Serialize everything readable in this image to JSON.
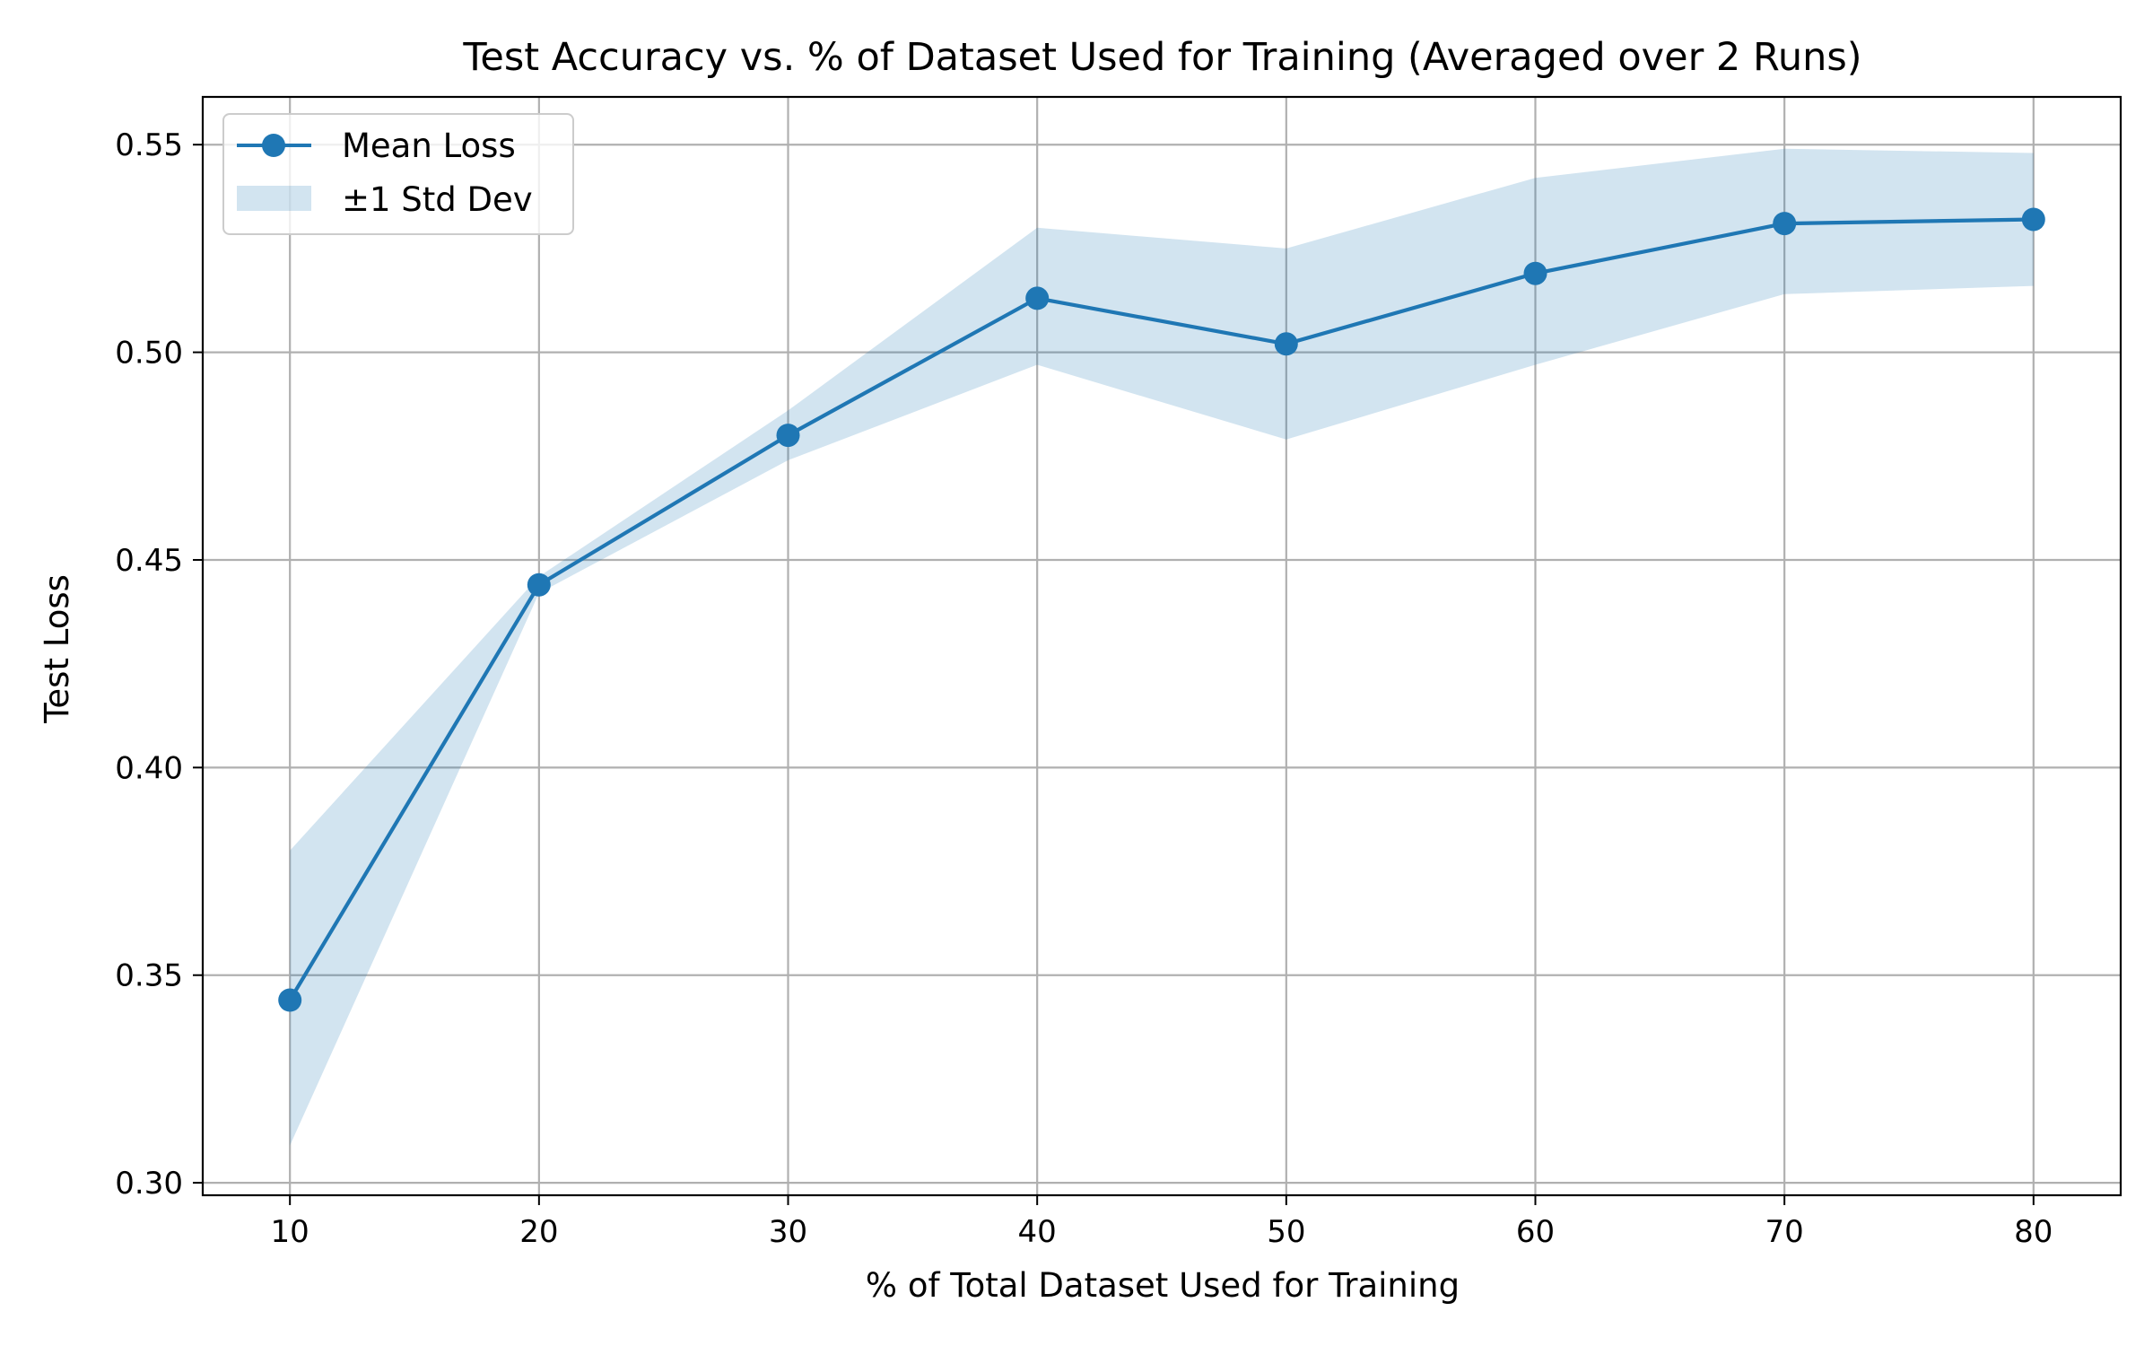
{
  "chart_data": {
    "type": "line",
    "title": "Test Accuracy vs. % of Dataset Used for Training (Averaged over 2 Runs)",
    "xlabel": "% of Total Dataset Used for Training",
    "ylabel": "Test Loss",
    "x": [
      10,
      20,
      30,
      40,
      50,
      60,
      70,
      80
    ],
    "series": [
      {
        "name": "Mean Loss",
        "values": [
          0.344,
          0.444,
          0.48,
          0.513,
          0.502,
          0.519,
          0.531,
          0.532
        ],
        "color": "#1f77b4",
        "marker": "circle"
      }
    ],
    "band": {
      "name": "±1 Std Dev",
      "lower": [
        0.309,
        0.442,
        0.474,
        0.497,
        0.479,
        0.497,
        0.514,
        0.516
      ],
      "upper": [
        0.38,
        0.446,
        0.486,
        0.53,
        0.525,
        0.542,
        0.549,
        0.548
      ],
      "color": "#1f77b4",
      "opacity": 0.2
    },
    "xlim": [
      6.5,
      83.5
    ],
    "ylim": [
      0.297,
      0.5615
    ],
    "xticks": [
      10,
      20,
      30,
      40,
      50,
      60,
      70,
      80
    ],
    "xtick_labels": [
      "10",
      "20",
      "30",
      "40",
      "50",
      "60",
      "70",
      "80"
    ],
    "yticks": [
      0.3,
      0.35,
      0.4,
      0.45,
      0.5,
      0.55
    ],
    "ytick_labels": [
      "0.30",
      "0.35",
      "0.40",
      "0.45",
      "0.50",
      "0.55"
    ],
    "grid": true,
    "legend": {
      "placement": "top-left",
      "entries": [
        {
          "label": "Mean Loss",
          "kind": "line-marker"
        },
        {
          "label": "±1 Std Dev",
          "kind": "patch"
        }
      ]
    }
  }
}
